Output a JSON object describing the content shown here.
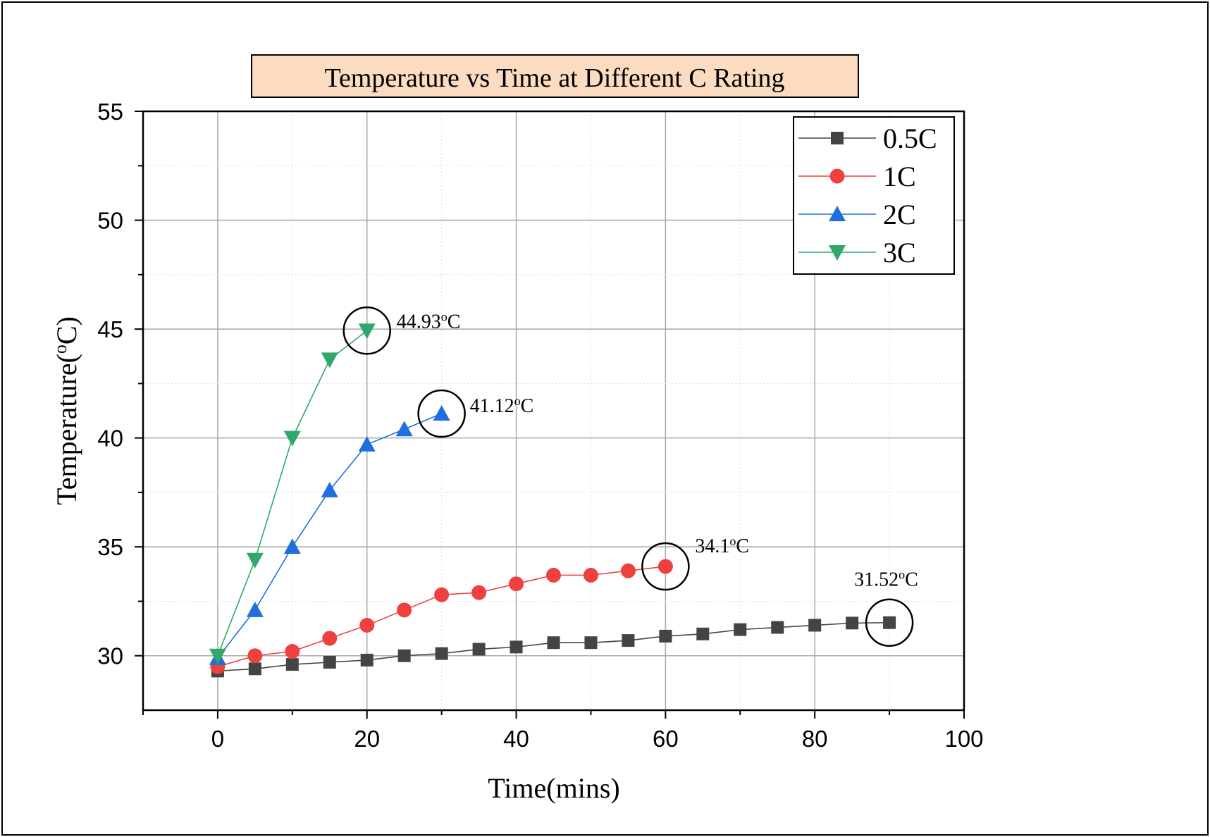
{
  "chart_data": {
    "type": "line",
    "title": "Temperature vs Time at Different C Rating",
    "xlabel": "Time(mins)",
    "ylabel_main": "Temperature(",
    "ylabel_sup": "o",
    "ylabel_end": "C)",
    "xlim": [
      -10,
      100
    ],
    "ylim": [
      27.5,
      55
    ],
    "xticks": [
      0,
      20,
      40,
      60,
      80,
      100
    ],
    "yticks": [
      30,
      35,
      40,
      45,
      50,
      55
    ],
    "x_tick_labels": [
      "0",
      "20",
      "40",
      "60",
      "80",
      "100"
    ],
    "y_tick_labels": [
      "30",
      "35",
      "40",
      "45",
      "50",
      "55"
    ],
    "grid": true,
    "legend_position": "top-right",
    "title_background": "#fcdcc0",
    "series": [
      {
        "name": "0.5C",
        "color": "#444444",
        "marker": "square",
        "x": [
          0,
          5,
          10,
          15,
          20,
          25,
          30,
          35,
          40,
          45,
          50,
          55,
          60,
          65,
          70,
          75,
          80,
          85,
          90
        ],
        "y": [
          29.3,
          29.4,
          29.6,
          29.7,
          29.8,
          30.0,
          30.1,
          30.3,
          30.4,
          30.6,
          30.6,
          30.7,
          30.9,
          31.0,
          31.2,
          31.3,
          31.4,
          31.5,
          31.52
        ]
      },
      {
        "name": "1C",
        "color": "#ef4040",
        "marker": "circle",
        "x": [
          0,
          5,
          10,
          15,
          20,
          25,
          30,
          35,
          40,
          45,
          50,
          55,
          60
        ],
        "y": [
          29.5,
          30.0,
          30.2,
          30.8,
          31.4,
          32.1,
          32.8,
          32.9,
          33.3,
          33.7,
          33.7,
          33.9,
          34.1
        ]
      },
      {
        "name": "2C",
        "color": "#1f6fdc",
        "marker": "triangle-up",
        "x": [
          0,
          5,
          10,
          15,
          20,
          25,
          30
        ],
        "y": [
          29.9,
          32.1,
          35.0,
          37.6,
          39.7,
          40.4,
          41.12
        ]
      },
      {
        "name": "3C",
        "color": "#2fa86a",
        "marker": "triangle-down",
        "x": [
          0,
          5,
          10,
          15,
          20
        ],
        "y": [
          30.0,
          34.4,
          40.0,
          43.6,
          44.93
        ]
      }
    ],
    "annotations": [
      {
        "text": "44.93",
        "unit_sup": "o",
        "unit": "C",
        "x": 20,
        "y": 44.93
      },
      {
        "text": "41.12",
        "unit_sup": "o",
        "unit": "C",
        "x": 30,
        "y": 41.12
      },
      {
        "text": "34.1",
        "unit_sup": "o",
        "unit": "C",
        "x": 60,
        "y": 34.1
      },
      {
        "text": "31.52",
        "unit_sup": "o",
        "unit": "C",
        "x": 90,
        "y": 31.52
      }
    ]
  }
}
